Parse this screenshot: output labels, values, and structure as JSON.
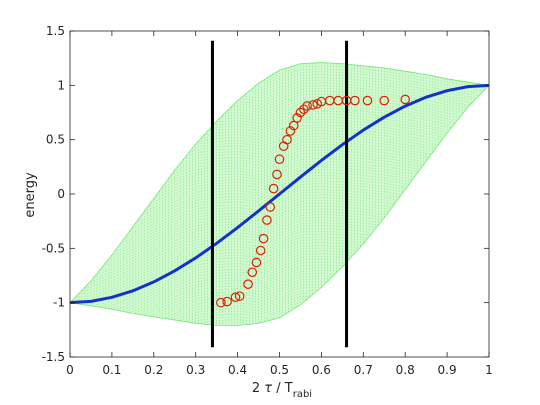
{
  "chart_data": {
    "type": "scatter",
    "xlabel_parts": {
      "main": "2 ",
      "tau": "τ",
      "mid": " / T",
      "sub": "rabi"
    },
    "ylabel": "energy",
    "xlim": [
      0,
      1
    ],
    "ylim": [
      -1.5,
      1.5
    ],
    "xticks": [
      0,
      0.1,
      0.2,
      0.3,
      0.4,
      0.5,
      0.6,
      0.7,
      0.8,
      0.9,
      1
    ],
    "xtick_labels": [
      "0",
      "0.1",
      "0.2",
      "0.3",
      "0.4",
      "0.5",
      "0.6",
      "0.7",
      "0.8",
      "0.9",
      "1"
    ],
    "yticks": [
      -1.5,
      -1,
      -0.5,
      0,
      0.5,
      1,
      1.5
    ],
    "ytick_labels": [
      "-1.5",
      "-1",
      "-0.5",
      "0",
      "0.5",
      "1",
      "1.5"
    ],
    "grid": false,
    "band": {
      "color": "#33dd33",
      "upper": [
        [
          0,
          -1
        ],
        [
          0.05,
          -0.8
        ],
        [
          0.1,
          -0.56
        ],
        [
          0.15,
          -0.3
        ],
        [
          0.2,
          -0.04
        ],
        [
          0.25,
          0.22
        ],
        [
          0.3,
          0.46
        ],
        [
          0.35,
          0.67
        ],
        [
          0.4,
          0.86
        ],
        [
          0.45,
          1.02
        ],
        [
          0.5,
          1.14
        ],
        [
          0.55,
          1.2
        ],
        [
          0.6,
          1.21
        ],
        [
          0.65,
          1.2
        ],
        [
          0.7,
          1.18
        ],
        [
          0.75,
          1.16
        ],
        [
          0.8,
          1.13
        ],
        [
          0.85,
          1.1
        ],
        [
          0.9,
          1.06
        ],
        [
          0.95,
          1.03
        ],
        [
          1,
          1
        ]
      ],
      "lower": [
        [
          0,
          -1
        ],
        [
          0.05,
          -1.03
        ],
        [
          0.1,
          -1.06
        ],
        [
          0.15,
          -1.1
        ],
        [
          0.2,
          -1.13
        ],
        [
          0.25,
          -1.16
        ],
        [
          0.3,
          -1.19
        ],
        [
          0.35,
          -1.21
        ],
        [
          0.4,
          -1.21
        ],
        [
          0.45,
          -1.19
        ],
        [
          0.5,
          -1.14
        ],
        [
          0.55,
          -1.02
        ],
        [
          0.6,
          -0.86
        ],
        [
          0.65,
          -0.67
        ],
        [
          0.7,
          -0.46
        ],
        [
          0.75,
          -0.22
        ],
        [
          0.8,
          0.04
        ],
        [
          0.85,
          0.3
        ],
        [
          0.9,
          0.56
        ],
        [
          0.95,
          0.8
        ],
        [
          1,
          1
        ]
      ]
    },
    "series": [
      {
        "style": "line",
        "color": "#1133cc",
        "x": [
          0,
          0.05,
          0.1,
          0.15,
          0.2,
          0.25,
          0.3,
          0.35,
          0.4,
          0.45,
          0.5,
          0.55,
          0.6,
          0.65,
          0.7,
          0.75,
          0.8,
          0.85,
          0.9,
          0.95,
          1
        ],
        "values": [
          -1,
          -0.988,
          -0.951,
          -0.891,
          -0.809,
          -0.707,
          -0.588,
          -0.454,
          -0.309,
          -0.156,
          0,
          0.156,
          0.309,
          0.454,
          0.588,
          0.707,
          0.809,
          0.891,
          0.951,
          0.988,
          1
        ]
      },
      {
        "style": "markers",
        "marker": "circle",
        "color": "#dd2200",
        "x": [
          0.36,
          0.375,
          0.395,
          0.405,
          0.425,
          0.435,
          0.445,
          0.455,
          0.462,
          0.47,
          0.478,
          0.486,
          0.494,
          0.5,
          0.51,
          0.518,
          0.526,
          0.534,
          0.542,
          0.55,
          0.558,
          0.566,
          0.58,
          0.59,
          0.6,
          0.62,
          0.64,
          0.66,
          0.68,
          0.71,
          0.75,
          0.8
        ],
        "values": [
          -1.0,
          -0.99,
          -0.95,
          -0.94,
          -0.83,
          -0.72,
          -0.63,
          -0.52,
          -0.41,
          -0.24,
          -0.12,
          0.05,
          0.18,
          0.32,
          0.44,
          0.5,
          0.58,
          0.63,
          0.7,
          0.75,
          0.78,
          0.81,
          0.82,
          0.83,
          0.85,
          0.86,
          0.86,
          0.86,
          0.86,
          0.86,
          0.86,
          0.87
        ]
      }
    ],
    "vlines": [
      {
        "x": 0.34,
        "y": [
          -1.41,
          1.41
        ],
        "color": "#000000"
      },
      {
        "x": 0.66,
        "y": [
          -1.41,
          1.41
        ],
        "color": "#000000"
      }
    ]
  }
}
